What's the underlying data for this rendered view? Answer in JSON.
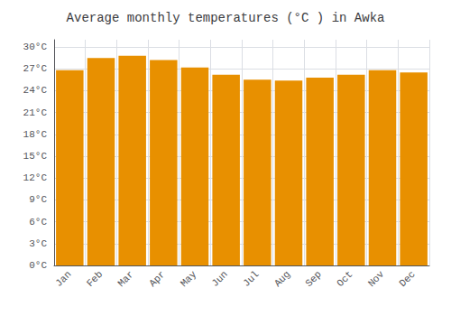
{
  "chart_data": {
    "type": "bar",
    "title": "Average monthly temperatures (°C ) in Awka",
    "categories": [
      "Jan",
      "Feb",
      "Mar",
      "Apr",
      "May",
      "Jun",
      "Jul",
      "Aug",
      "Sep",
      "Oct",
      "Nov",
      "Dec"
    ],
    "values": [
      26.8,
      28.5,
      28.8,
      28.2,
      27.2,
      26.2,
      25.5,
      25.4,
      25.8,
      26.2,
      26.8,
      26.5
    ],
    "color": "#E89000",
    "ylim": [
      0,
      31
    ],
    "yticks": [
      {
        "value": 0,
        "label": "0°C"
      },
      {
        "value": 3,
        "label": "3°C"
      },
      {
        "value": 6,
        "label": "6°C"
      },
      {
        "value": 9,
        "label": "9°C"
      },
      {
        "value": 12,
        "label": "12°C"
      },
      {
        "value": 15,
        "label": "15°C"
      },
      {
        "value": 18,
        "label": "18°C"
      },
      {
        "value": 21,
        "label": "21°C"
      },
      {
        "value": 24,
        "label": "24°C"
      },
      {
        "value": 27,
        "label": "27°C"
      },
      {
        "value": 30,
        "label": "30°C"
      }
    ],
    "grid": true
  }
}
